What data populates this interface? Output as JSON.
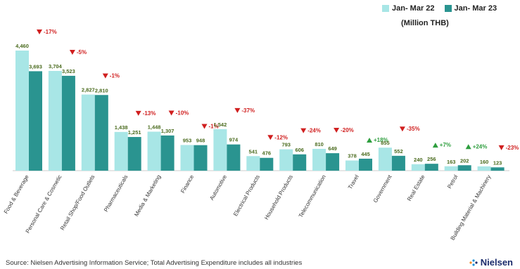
{
  "colors": {
    "series1": "#a8e6e6",
    "series2": "#2a9490",
    "up": "#2e9e3e",
    "down": "#d01f1f",
    "value_text": "#4a6b1e"
  },
  "legend": {
    "series1": "Jan- Mar 22",
    "series2": "Jan- Mar 23"
  },
  "unit": "(Million THB)",
  "source": "Source: Nielsen Advertising Information Service; Total Advertising Expenditure includes all industries",
  "logo": {
    "text": "Nielsen",
    "icon": "nielsen-logo-icon"
  },
  "chart_data": {
    "type": "bar",
    "categories": [
      "Food & Beverage",
      "Personal Care & Cosmetic",
      "Retail Shop/Food Outlets",
      "Pharmaceuticals",
      "Media & Marketing",
      "Finance",
      "Automotive",
      "Electrical Products",
      "Household Products",
      "Telecommunication",
      "Travel",
      "Government",
      "Real Estate",
      "Petrol",
      "Building Material & Machinery"
    ],
    "series": [
      {
        "name": "Jan- Mar 22",
        "values": [
          4460,
          3704,
          2827,
          1438,
          1448,
          953,
          1542,
          541,
          793,
          810,
          378,
          855,
          240,
          163,
          160
        ],
        "labels": [
          "4,460",
          "3,704",
          "2,827",
          "1,438",
          "1,448",
          "953",
          "1,542",
          "541",
          "793",
          "810",
          "378",
          "855",
          "240",
          "163",
          "160"
        ]
      },
      {
        "name": "Jan- Mar 23",
        "values": [
          3693,
          3523,
          2810,
          1251,
          1307,
          948,
          974,
          476,
          606,
          649,
          445,
          552,
          256,
          202,
          123
        ],
        "labels": [
          "3,693",
          "3,523",
          "2,810",
          "1,251",
          "1,307",
          "948",
          "974",
          "476",
          "606",
          "649",
          "445",
          "552",
          "256",
          "202",
          "123"
        ]
      }
    ],
    "changes": [
      {
        "text": "-17%",
        "dir": "down"
      },
      {
        "text": "-5%",
        "dir": "down"
      },
      {
        "text": "-1%",
        "dir": "down"
      },
      {
        "text": "-13%",
        "dir": "down"
      },
      {
        "text": "-10%",
        "dir": "down"
      },
      {
        "text": "-1%",
        "dir": "down"
      },
      {
        "text": "-37%",
        "dir": "down"
      },
      {
        "text": "-12%",
        "dir": "down"
      },
      {
        "text": "-24%",
        "dir": "down"
      },
      {
        "text": "-20%",
        "dir": "down"
      },
      {
        "text": "+18%",
        "dir": "up"
      },
      {
        "text": "-35%",
        "dir": "down"
      },
      {
        "text": "+7%",
        "dir": "up"
      },
      {
        "text": "+24%",
        "dir": "up"
      },
      {
        "text": "-23%",
        "dir": "down"
      }
    ],
    "ylim": [
      0,
      4460
    ],
    "grid": false,
    "legend_position": "top-right"
  }
}
